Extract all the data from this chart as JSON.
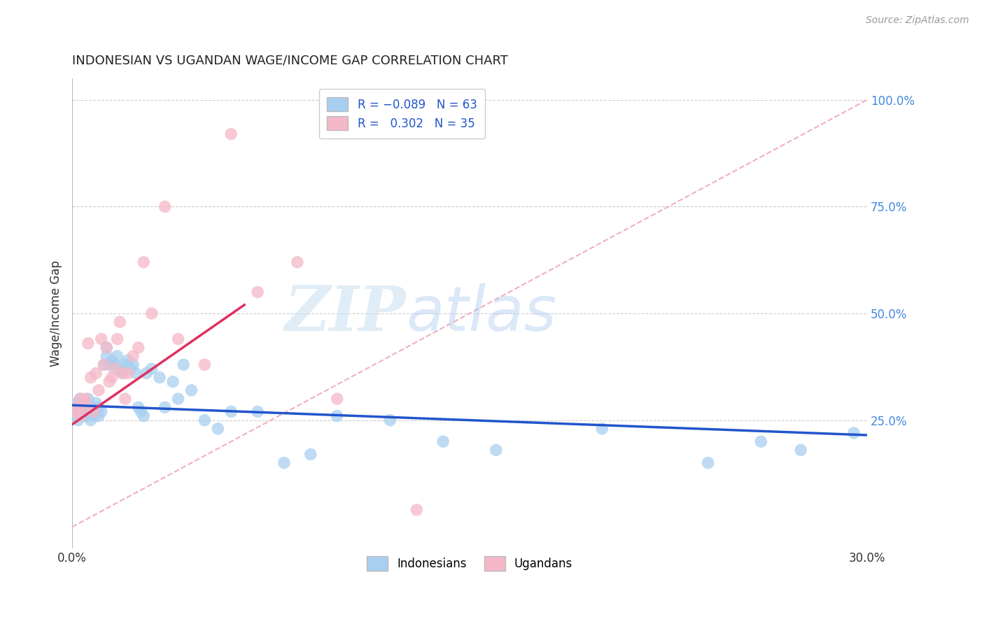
{
  "title": "INDONESIAN VS UGANDAN WAGE/INCOME GAP CORRELATION CHART",
  "source": "Source: ZipAtlas.com",
  "ylabel": "Wage/Income Gap",
  "color_blue": "#a8cff0",
  "color_pink": "#f5b8c8",
  "line_blue": "#2255cc",
  "line_pink": "#e03060",
  "diag_color": "#f0b0c0",
  "watermark_color": "#cde4f5",
  "xmin": 0.0,
  "xmax": 0.3,
  "ymin": -0.05,
  "ymax": 1.05,
  "blue_R": -0.089,
  "blue_N": 63,
  "pink_R": 0.302,
  "pink_N": 35,
  "blue_x": [
    0.0012,
    0.0015,
    0.0018,
    0.002,
    0.0022,
    0.0025,
    0.003,
    0.003,
    0.004,
    0.004,
    0.005,
    0.005,
    0.006,
    0.006,
    0.007,
    0.007,
    0.008,
    0.008,
    0.009,
    0.009,
    0.01,
    0.01,
    0.011,
    0.012,
    0.013,
    0.013,
    0.014,
    0.015,
    0.016,
    0.017,
    0.018,
    0.019,
    0.02,
    0.021,
    0.022,
    0.023,
    0.024,
    0.025,
    0.026,
    0.027,
    0.028,
    0.03,
    0.033,
    0.035,
    0.038,
    0.04,
    0.042,
    0.045,
    0.05,
    0.055,
    0.06,
    0.07,
    0.08,
    0.09,
    0.1,
    0.12,
    0.14,
    0.16,
    0.2,
    0.24,
    0.26,
    0.275,
    0.295
  ],
  "blue_y": [
    0.28,
    0.27,
    0.29,
    0.26,
    0.25,
    0.27,
    0.28,
    0.3,
    0.26,
    0.29,
    0.27,
    0.26,
    0.28,
    0.3,
    0.27,
    0.25,
    0.28,
    0.26,
    0.29,
    0.27,
    0.26,
    0.28,
    0.27,
    0.38,
    0.4,
    0.42,
    0.38,
    0.39,
    0.38,
    0.4,
    0.37,
    0.36,
    0.38,
    0.39,
    0.37,
    0.38,
    0.36,
    0.28,
    0.27,
    0.26,
    0.36,
    0.37,
    0.35,
    0.28,
    0.34,
    0.3,
    0.38,
    0.32,
    0.25,
    0.23,
    0.27,
    0.27,
    0.15,
    0.17,
    0.26,
    0.25,
    0.2,
    0.18,
    0.23,
    0.15,
    0.2,
    0.18,
    0.22
  ],
  "pink_x": [
    0.001,
    0.002,
    0.003,
    0.003,
    0.004,
    0.005,
    0.005,
    0.006,
    0.007,
    0.008,
    0.009,
    0.01,
    0.011,
    0.012,
    0.013,
    0.014,
    0.015,
    0.016,
    0.017,
    0.018,
    0.019,
    0.02,
    0.021,
    0.023,
    0.025,
    0.027,
    0.03,
    0.035,
    0.04,
    0.05,
    0.06,
    0.07,
    0.085,
    0.1,
    0.13
  ],
  "pink_y": [
    0.27,
    0.28,
    0.26,
    0.3,
    0.28,
    0.3,
    0.29,
    0.43,
    0.35,
    0.27,
    0.36,
    0.32,
    0.44,
    0.38,
    0.42,
    0.34,
    0.35,
    0.37,
    0.44,
    0.48,
    0.36,
    0.3,
    0.36,
    0.4,
    0.42,
    0.62,
    0.5,
    0.75,
    0.44,
    0.38,
    0.92,
    0.55,
    0.62,
    0.3,
    0.04
  ],
  "blue_line_x": [
    0.0,
    0.3
  ],
  "blue_line_y": [
    0.285,
    0.215
  ],
  "pink_line_x": [
    0.0,
    0.065
  ],
  "pink_line_y": [
    0.24,
    0.52
  ]
}
